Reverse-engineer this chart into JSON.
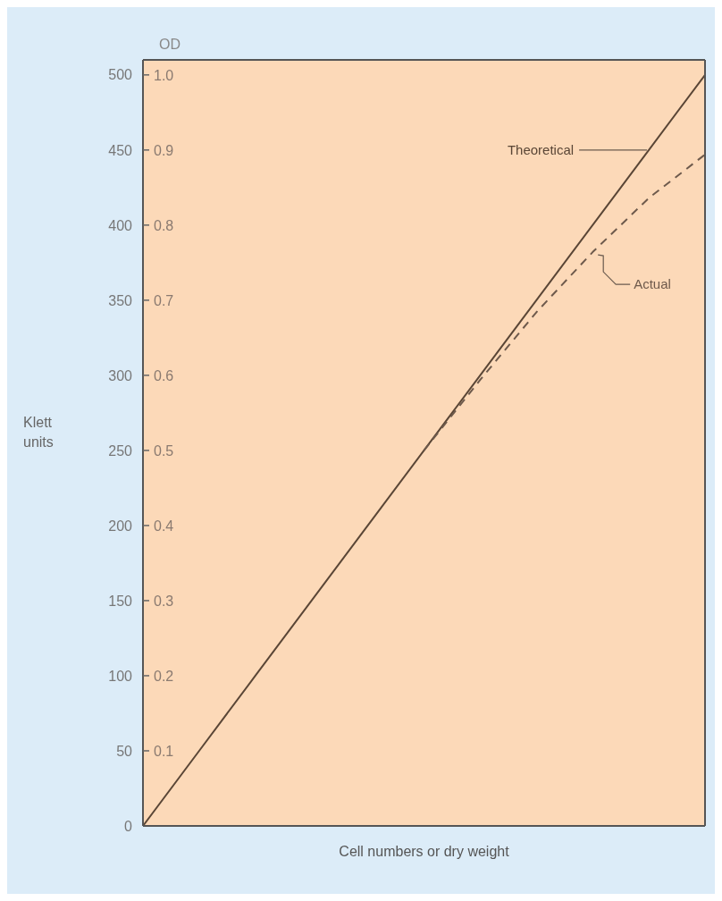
{
  "chart_data": {
    "type": "line",
    "xlabel": "Cell numbers or dry weight",
    "ylabel": "Klett units",
    "y2label": "OD",
    "categories": [
      null,
      null,
      null,
      null,
      null,
      null,
      null,
      null,
      null,
      null,
      null
    ],
    "ylim": [
      0,
      510
    ],
    "yticks": [
      0,
      50,
      100,
      150,
      200,
      250,
      300,
      350,
      400,
      450,
      500
    ],
    "y2lim": [
      0,
      1.02
    ],
    "y2ticks": [
      0.1,
      0.2,
      0.3,
      0.4,
      0.5,
      0.6,
      0.7,
      0.8,
      0.9,
      {
        "value": 1,
        "label": "1.0"
      }
    ],
    "tick_labels": "y",
    "marker": "none",
    "series": [
      {
        "name": "Theoretical",
        "color": "#5a4636",
        "line_style": "solid",
        "values": [
          0,
          50,
          100,
          150,
          200,
          250,
          300,
          350,
          400,
          450,
          500
        ]
      },
      {
        "name": "Actual",
        "color": "#6e5a4c",
        "line_style": "dashed",
        "values": [
          null,
          null,
          null,
          null,
          null,
          250,
          297,
          342,
          382,
          418,
          447
        ]
      }
    ]
  }
}
